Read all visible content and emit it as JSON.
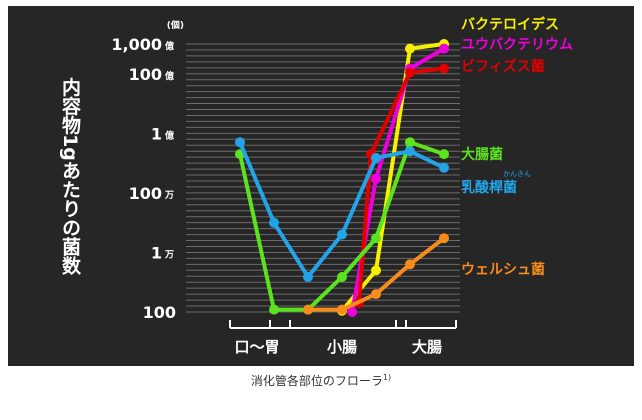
{
  "chart_data": {
    "type": "line",
    "ylabel": "内容物1gあたりの菌数",
    "y_unit": "(個)",
    "yscale": "log",
    "ylim": [
      100,
      100000000000
    ],
    "y_ticks": [
      {
        "value": 100000000000,
        "num": "1,000",
        "unit": "億"
      },
      {
        "value": 10000000000,
        "num": "100",
        "unit": "億"
      },
      {
        "value": 100000000,
        "num": "1",
        "unit": "億"
      },
      {
        "value": 1000000,
        "num": "100",
        "unit": "万"
      },
      {
        "value": 10000,
        "num": "1",
        "unit": "万"
      },
      {
        "value": 100,
        "num": "100",
        "unit": ""
      }
    ],
    "x_positions": 7,
    "x_groups": [
      {
        "label": "口〜胃",
        "from": 0,
        "to": 1
      },
      {
        "label": "小腸",
        "from": 2,
        "to": 4
      },
      {
        "label": "大腸",
        "from": 5,
        "to": 6
      }
    ],
    "series": [
      {
        "name": "バクテロイデス",
        "color": "#f7ef00",
        "x": [
          3,
          4,
          5,
          6
        ],
        "y": [
          110,
          2500,
          70000000000,
          100000000000
        ]
      },
      {
        "name": "ユウバクテリウム",
        "color": "#ee00dd",
        "x": [
          3.3,
          4,
          5,
          6
        ],
        "y": [
          100,
          3000000,
          15000000000,
          70000000000
        ]
      },
      {
        "name": "ビフィズス菌",
        "color": "#e00000",
        "x": [
          3.5,
          3.85,
          5,
          6
        ],
        "y": [
          200,
          20000000,
          11000000000,
          15000000000
        ]
      },
      {
        "name": "大腸菌",
        "color": "#5ce21f",
        "x": [
          0,
          1,
          2,
          3,
          4,
          5,
          6
        ],
        "y": [
          20000000,
          120,
          120,
          1500,
          30000,
          50000000,
          20000000
        ]
      },
      {
        "name": "乳酸桿菌",
        "ruby": "かんきん",
        "color": "#23a4e8",
        "x": [
          0,
          1,
          2,
          3,
          4,
          5,
          6
        ],
        "y": [
          50000000,
          100000,
          1500,
          40000,
          15000000,
          25000000,
          7000000
        ]
      },
      {
        "name": "ウェルシュ菌",
        "color": "#f78c1b",
        "x": [
          2,
          3,
          4,
          5,
          6
        ],
        "y": [
          120,
          120,
          400,
          4000,
          30000
        ]
      }
    ]
  },
  "caption": {
    "text": "消化管各部位のフローラ",
    "ref": "1)"
  }
}
